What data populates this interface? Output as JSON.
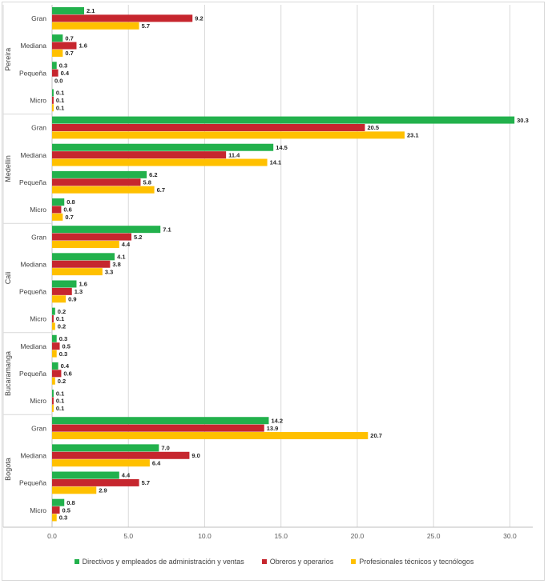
{
  "colors": {
    "directivos": "#22b14c",
    "obreros": "#c6262e",
    "profesionales": "#ffc000",
    "grid": "#d9d9d9",
    "axis_text": "#595959"
  },
  "chart_data": {
    "type": "bar",
    "orientation": "horizontal",
    "title": "",
    "xlabel": "",
    "ylabel": "",
    "xlim": [
      0,
      31.5
    ],
    "x_ticks": [
      "0.0",
      "5.0",
      "10.0",
      "15.0",
      "20.0",
      "25.0",
      "30.0"
    ],
    "grid": true,
    "legend_position": "bottom",
    "series": [
      {
        "key": "directivos",
        "name": "Directivos y empleados de administración y ventas"
      },
      {
        "key": "obreros",
        "name": "Obreros y operarios"
      },
      {
        "key": "profesionales",
        "name": "Profesionales técnicos y tecnólogos"
      }
    ],
    "groups": [
      {
        "city": "Pereira",
        "categories": [
          {
            "size": "Gran",
            "values": [
              2.1,
              9.2,
              5.7
            ],
            "labels": [
              "2.1",
              "9.2",
              "5.7"
            ]
          },
          {
            "size": "Mediana",
            "values": [
              0.7,
              1.6,
              0.7
            ],
            "labels": [
              "0.7",
              "1.6",
              "0.7"
            ]
          },
          {
            "size": "Pequeña",
            "values": [
              0.3,
              0.4,
              0.0
            ],
            "labels": [
              "0.3",
              "0.4",
              "0.0"
            ]
          },
          {
            "size": "Micro",
            "values": [
              0.1,
              0.1,
              0.1
            ],
            "labels": [
              "0.1",
              "0.1",
              "0.1"
            ]
          }
        ]
      },
      {
        "city": "Medellin",
        "categories": [
          {
            "size": "Gran",
            "values": [
              30.3,
              20.5,
              23.1
            ],
            "labels": [
              "30.3",
              "20.5",
              "23.1"
            ]
          },
          {
            "size": "Mediana",
            "values": [
              14.5,
              11.4,
              14.1
            ],
            "labels": [
              "14.5",
              "11.4",
              "14.1"
            ]
          },
          {
            "size": "Pequeña",
            "values": [
              6.2,
              5.8,
              6.7
            ],
            "labels": [
              "6.2",
              "5.8",
              "6.7"
            ]
          },
          {
            "size": "Micro",
            "values": [
              0.8,
              0.6,
              0.7
            ],
            "labels": [
              "0.8",
              "0.6",
              "0.7"
            ]
          }
        ]
      },
      {
        "city": "Cali",
        "categories": [
          {
            "size": "Gran",
            "values": [
              7.1,
              5.2,
              4.4
            ],
            "labels": [
              "7.1",
              "5.2",
              "4.4"
            ]
          },
          {
            "size": "Mediana",
            "values": [
              4.1,
              3.8,
              3.3
            ],
            "labels": [
              "4.1",
              "3.8",
              "3.3"
            ]
          },
          {
            "size": "Pequeña",
            "values": [
              1.6,
              1.3,
              0.9
            ],
            "labels": [
              "1.6",
              "1.3",
              "0.9"
            ]
          },
          {
            "size": "Micro",
            "values": [
              0.2,
              0.1,
              0.2
            ],
            "labels": [
              "0.2",
              "0.1",
              "0.2"
            ]
          }
        ]
      },
      {
        "city": "Bucaramanga",
        "categories": [
          {
            "size": "Mediana",
            "values": [
              0.3,
              0.5,
              0.3
            ],
            "labels": [
              "0.3",
              "0.5",
              "0.3"
            ]
          },
          {
            "size": "Pequeña",
            "values": [
              0.4,
              0.6,
              0.2
            ],
            "labels": [
              "0.4",
              "0.6",
              "0.2"
            ]
          },
          {
            "size": "Micro",
            "values": [
              0.1,
              0.1,
              0.1
            ],
            "labels": [
              "0.1",
              "0.1",
              "0.1"
            ]
          }
        ]
      },
      {
        "city": "Bogota",
        "categories": [
          {
            "size": "Gran",
            "values": [
              14.2,
              13.9,
              20.7
            ],
            "labels": [
              "14.2",
              "13.9",
              "20.7"
            ]
          },
          {
            "size": "Mediana",
            "values": [
              7.0,
              9.0,
              6.4
            ],
            "labels": [
              "7.0",
              "9.0",
              "6.4"
            ]
          },
          {
            "size": "Pequeña",
            "values": [
              4.4,
              5.7,
              2.9
            ],
            "labels": [
              "4.4",
              "5.7",
              "2.9"
            ]
          },
          {
            "size": "Micro",
            "values": [
              0.8,
              0.5,
              0.3
            ],
            "labels": [
              "0.8",
              "0.5",
              "0.3"
            ]
          }
        ]
      }
    ]
  }
}
